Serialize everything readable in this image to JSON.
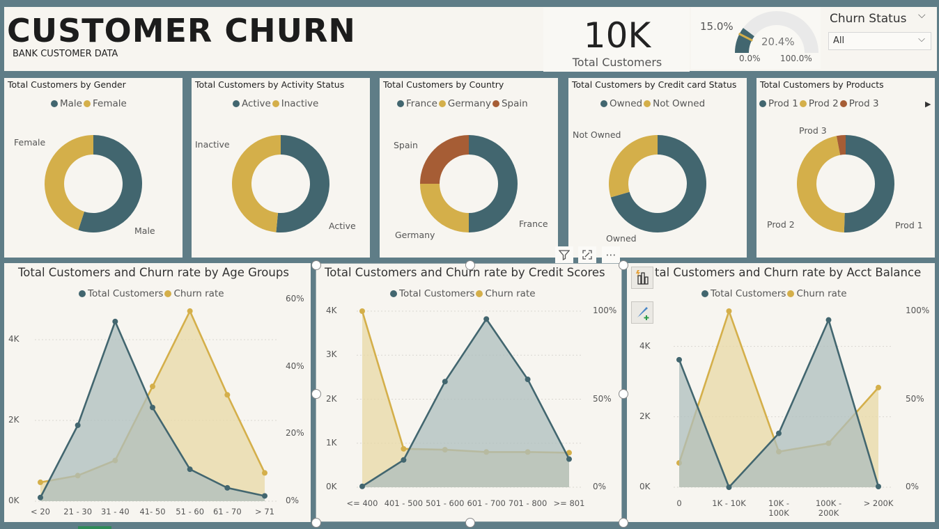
{
  "header": {
    "title": "CUSTOMER CHURN",
    "subtitle": "BANK CUSTOMER DATA"
  },
  "kpi": {
    "value": "10K",
    "label": "Total Customers"
  },
  "gauge": {
    "value_label": "20.4%",
    "target_label": "15.0%",
    "min_label": "0.0%",
    "max_label": "100.0%",
    "value": 0.204,
    "target": 0.15,
    "fill_color": "#42666f",
    "target_color": "#d4af4a",
    "track_color": "#e9e9e9"
  },
  "slicer": {
    "title": "Churn Status",
    "value": "All"
  },
  "colors": {
    "teal": "#42666f",
    "gold": "#d4af4a",
    "rust": "#a65d35",
    "teal_fill": "#adbdbe",
    "gold_fill": "#e8d8a6",
    "overlap_fill": "#b7b28c"
  },
  "donuts": [
    {
      "title": "Total Customers by Gender",
      "legend": [
        "Male",
        "Female"
      ],
      "slices": [
        {
          "name": "Male",
          "value": 55,
          "color": "#42666f"
        },
        {
          "name": "Female",
          "value": 45,
          "color": "#d4af4a"
        }
      ],
      "labels": [
        "Female",
        "Male"
      ]
    },
    {
      "title": "Total Customers by Activity Status",
      "legend": [
        "Active",
        "Inactive"
      ],
      "slices": [
        {
          "name": "Active",
          "value": 51.5,
          "color": "#42666f"
        },
        {
          "name": "Inactive",
          "value": 48.5,
          "color": "#d4af4a"
        }
      ],
      "labels": [
        "Inactive",
        "Active"
      ]
    },
    {
      "title": "Total Customers by Country",
      "legend": [
        "France",
        "Germany",
        "Spain"
      ],
      "slices": [
        {
          "name": "France",
          "value": 50,
          "color": "#42666f"
        },
        {
          "name": "Germany",
          "value": 25,
          "color": "#d4af4a"
        },
        {
          "name": "Spain",
          "value": 25,
          "color": "#a65d35"
        }
      ],
      "labels": [
        "Spain",
        "Germany",
        "France"
      ]
    },
    {
      "title": "Total Customers by Credit card Status",
      "legend": [
        "Owned",
        "Not Owned"
      ],
      "slices": [
        {
          "name": "Owned",
          "value": 70.5,
          "color": "#42666f"
        },
        {
          "name": "Not Owned",
          "value": 29.5,
          "color": "#d4af4a"
        }
      ],
      "labels": [
        "Not Owned",
        "Owned"
      ]
    },
    {
      "title": "Total Customers by Products",
      "legend": [
        "Prod 1",
        "Prod 2",
        "Prod 3"
      ],
      "slices": [
        {
          "name": "Prod 1",
          "value": 50.5,
          "color": "#42666f"
        },
        {
          "name": "Prod 2",
          "value": 46.5,
          "color": "#d4af4a"
        },
        {
          "name": "Prod 3",
          "value": 3,
          "color": "#a65d35"
        }
      ],
      "labels": [
        "Prod 3",
        "Prod 2",
        "Prod 1"
      ]
    }
  ],
  "chart_data": [
    {
      "type": "area",
      "title": "Total Customers and Churn rate by Age Groups",
      "categories": [
        "< 20",
        "21 - 30",
        "31 - 40",
        "41- 50",
        "51 - 60",
        "61 - 70",
        "> 71"
      ],
      "series": [
        {
          "name": "Total Customers",
          "axis": "left",
          "values": [
            90,
            1880,
            4450,
            2320,
            790,
            330,
            130
          ]
        },
        {
          "name": "Churn rate",
          "axis": "right",
          "values": [
            5.6,
            7.6,
            12.1,
            34.1,
            56.5,
            31.6,
            8.4
          ]
        }
      ],
      "yleft": {
        "ticks": [
          "0K",
          "2K",
          "4K"
        ],
        "lim": [
          0,
          5000
        ]
      },
      "yright": {
        "ticks": [
          "0%",
          "20%",
          "40%",
          "60%"
        ],
        "lim": [
          0,
          60
        ]
      },
      "legend": "top-center"
    },
    {
      "type": "area",
      "title": "Total Customers and Churn rate by Credit Scores",
      "categories": [
        "<= 400",
        "401 - 500",
        "501 - 600",
        "601 - 700",
        "701 - 800",
        ">= 801"
      ],
      "series": [
        {
          "name": "Total Customers",
          "axis": "left",
          "values": [
            20,
            620,
            2400,
            3820,
            2450,
            640
          ]
        },
        {
          "name": "Churn rate",
          "axis": "right",
          "values": [
            100,
            21.8,
            21.3,
            20,
            20,
            19.6
          ]
        }
      ],
      "yleft": {
        "ticks": [
          "0K",
          "1K",
          "2K",
          "3K",
          "4K"
        ],
        "lim": [
          0,
          4000
        ]
      },
      "yright": {
        "ticks": [
          "0%",
          "50%",
          "100%"
        ],
        "lim": [
          0,
          100
        ]
      },
      "legend": "top-center"
    },
    {
      "type": "area",
      "title": "Total Customers and Churn rate by Acct Balance",
      "title_visible": "tal Customers and Churn rate by Acct Balance",
      "categories": [
        "0",
        "1K - 10K",
        "10K - 100K",
        "100K - 200K",
        "> 200K"
      ],
      "series": [
        {
          "name": "Total Customers",
          "axis": "left",
          "values": [
            3620,
            0,
            1530,
            4750,
            20
          ]
        },
        {
          "name": "Churn rate",
          "axis": "right",
          "values": [
            13.8,
            100,
            20.2,
            25,
            56.6
          ]
        }
      ],
      "yleft": {
        "ticks": [
          "0K",
          "2K",
          "4K"
        ],
        "lim": [
          0,
          5000
        ]
      },
      "yright": {
        "ticks": [
          "0%",
          "50%",
          "100%"
        ],
        "lim": [
          0,
          100
        ]
      },
      "legend": "top-center"
    }
  ],
  "toolbar": {
    "filter_icon": "filter-icon",
    "focus_icon": "focus-mode-icon",
    "more_icon": "more-options-icon",
    "more_label": "⋯"
  },
  "side_buttons": [
    "build-visual-icon",
    "format-visual-icon"
  ]
}
